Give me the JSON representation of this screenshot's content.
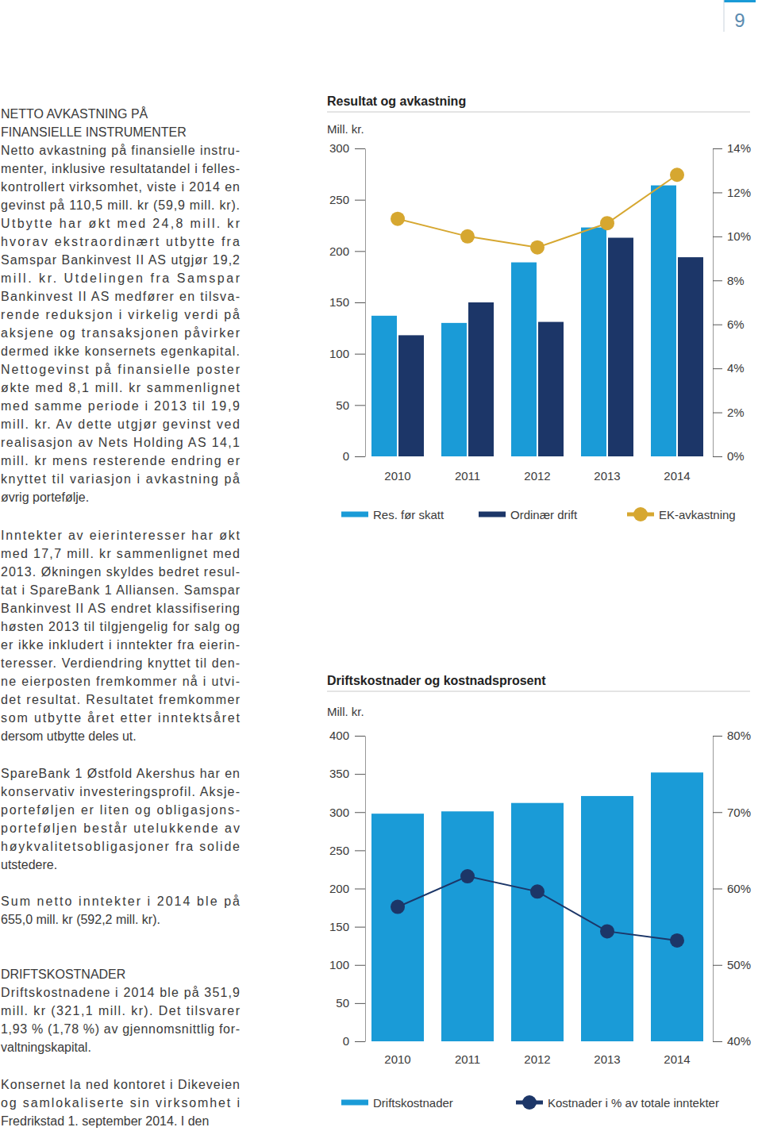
{
  "page": {
    "page_number": 9,
    "paragraphs": [
      {
        "heading": [
          "NETTO AVKASTNING PÅ",
          "FINANSIELLE INSTRUMENTER"
        ],
        "lines": [
          "Netto avkastning på finansielle instru-",
          "menter, inklusive resultatandel i felles-",
          "kontrollert virksomhet, viste i 2014 en",
          "gevinst på 110,5 mill. kr (59,9 mill. kr).",
          "Utbytte har økt med 24,8 mill. kr",
          "hvorav ekstraordinært utbytte fra",
          "Samspar Bankinvest II AS utgjør 19,2",
          "mill. kr. Utdelingen fra Samspar",
          "Bankinvest II AS medfører en tilsva-",
          "rende reduksjon i virkelig verdi på",
          "aksjene og transaksjonen påvirker",
          "dermed ikke konsernets egenkapital.",
          "Nettogevinst på finansielle poster",
          "økte med 8,1 mill. kr sammenlignet",
          "med samme periode i 2013 til 19,9",
          "mill. kr. Av dette utgjør gevinst ved",
          "realisasjon av Nets Holding AS 14,1",
          "mill. kr mens resterende endring er",
          "knyttet til variasjon i avkastning på",
          "øvrig portefølje."
        ]
      },
      {
        "lines": [
          "Inntekter av eierinteresser har økt",
          "med 17,7 mill. kr sammenlignet med",
          "2013. Økningen skyldes bedret resul-",
          "tat i SpareBank 1 Alliansen. Samspar",
          "Bankinvest II AS endret klassifisering",
          "høsten 2013 til tilgjengelig for salg og",
          "er ikke inkludert i inntekter fra eierin-",
          "teresser. Verdiendring knyttet til den-",
          "ne eierposten fremkommer nå i utvi-",
          "det resultat. Resultatet fremkommer",
          "som utbytte året etter inntektsåret",
          "dersom utbytte deles ut."
        ]
      },
      {
        "lines": [
          "SpareBank 1 Østfold Akershus har en",
          "konservativ investeringsprofil. Aksje-",
          "porteføljen er liten og obligasjons-",
          "porteføljen består utelukkende av",
          "høykvalitetsobligasjoner fra solide",
          "utstedere."
        ]
      },
      {
        "lines": [
          "Sum netto inntekter i 2014 ble på",
          "655,0 mill. kr (592,2 mill. kr)."
        ]
      },
      {
        "heading": [
          "DRIFTSKOSTNADER"
        ],
        "lines": [
          "Driftskostnadene i 2014 ble på 351,9",
          "mill. kr (321,1 mill. kr). Det tilsvarer",
          "1,93 % (1,78 %) av gjennomsnittlig for-",
          "valtningskapital."
        ]
      },
      {
        "lines": [
          "Konsernet la ned kontoret i Dikeveien",
          "og samlokaliserte sin virksomhet i",
          "Fredrikstad 1. september 2014. I den"
        ]
      }
    ]
  },
  "chart_data": [
    {
      "type": "bar",
      "title": "Resultat og avkastning",
      "y_label": "Mill. kr.",
      "categories": [
        "2010",
        "2011",
        "2012",
        "2013",
        "2014"
      ],
      "series": [
        {
          "name": "Res. før skatt",
          "color": "#1a9bd7",
          "values": [
            137,
            130,
            189,
            223,
            264
          ]
        },
        {
          "name": "Ordinær drift",
          "color": "#1c3668",
          "values": [
            118,
            150,
            131,
            213,
            194
          ]
        },
        {
          "name": "EK-avkastning",
          "type": "line",
          "axis": "y2",
          "color": "#d6a730",
          "marker": "circle",
          "values": [
            10.8,
            10.0,
            9.5,
            10.6,
            12.8
          ]
        }
      ],
      "ylim": [
        0,
        300
      ],
      "yticks": [
        0,
        50,
        100,
        150,
        200,
        250,
        300
      ],
      "y2lim": [
        0,
        14
      ],
      "y2ticks": [
        {
          "value": 0,
          "label": "0%"
        },
        {
          "value": 2,
          "label": "2%"
        },
        {
          "value": 4,
          "label": "4%"
        },
        {
          "value": 6,
          "label": "6%"
        },
        {
          "value": 8,
          "label": "8%"
        },
        {
          "value": 10,
          "label": "10%"
        },
        {
          "value": 12,
          "label": "12%"
        },
        {
          "value": 14,
          "label": "14%"
        }
      ],
      "legend": "bottom"
    },
    {
      "type": "bar",
      "title": "Driftskostnader og kostnadsprosent",
      "y_label": "Mill. kr.",
      "categories": [
        "2010",
        "2011",
        "2012",
        "2013",
        "2014"
      ],
      "series": [
        {
          "name": "Driftskostnader",
          "color": "#1a9bd7",
          "values": [
            298,
            301,
            312,
            321.1,
            351.9
          ]
        },
        {
          "name": "Kostnader i % av totale inntekter",
          "type": "line",
          "axis": "y2",
          "color": "#1c3668",
          "marker": "circle",
          "values": [
            57.6,
            61.6,
            59.6,
            54.4,
            53.2
          ]
        }
      ],
      "ylim": [
        0,
        400
      ],
      "yticks": [
        0,
        50,
        100,
        150,
        200,
        250,
        300,
        350,
        400
      ],
      "y2lim": [
        40,
        80
      ],
      "y2ticks": [
        {
          "value": 40,
          "label": "40%"
        },
        {
          "value": 50,
          "label": "50%"
        },
        {
          "value": 60,
          "label": "60%"
        },
        {
          "value": 70,
          "label": "70%"
        },
        {
          "value": 80,
          "label": "80%"
        }
      ],
      "legend": "bottom"
    }
  ]
}
